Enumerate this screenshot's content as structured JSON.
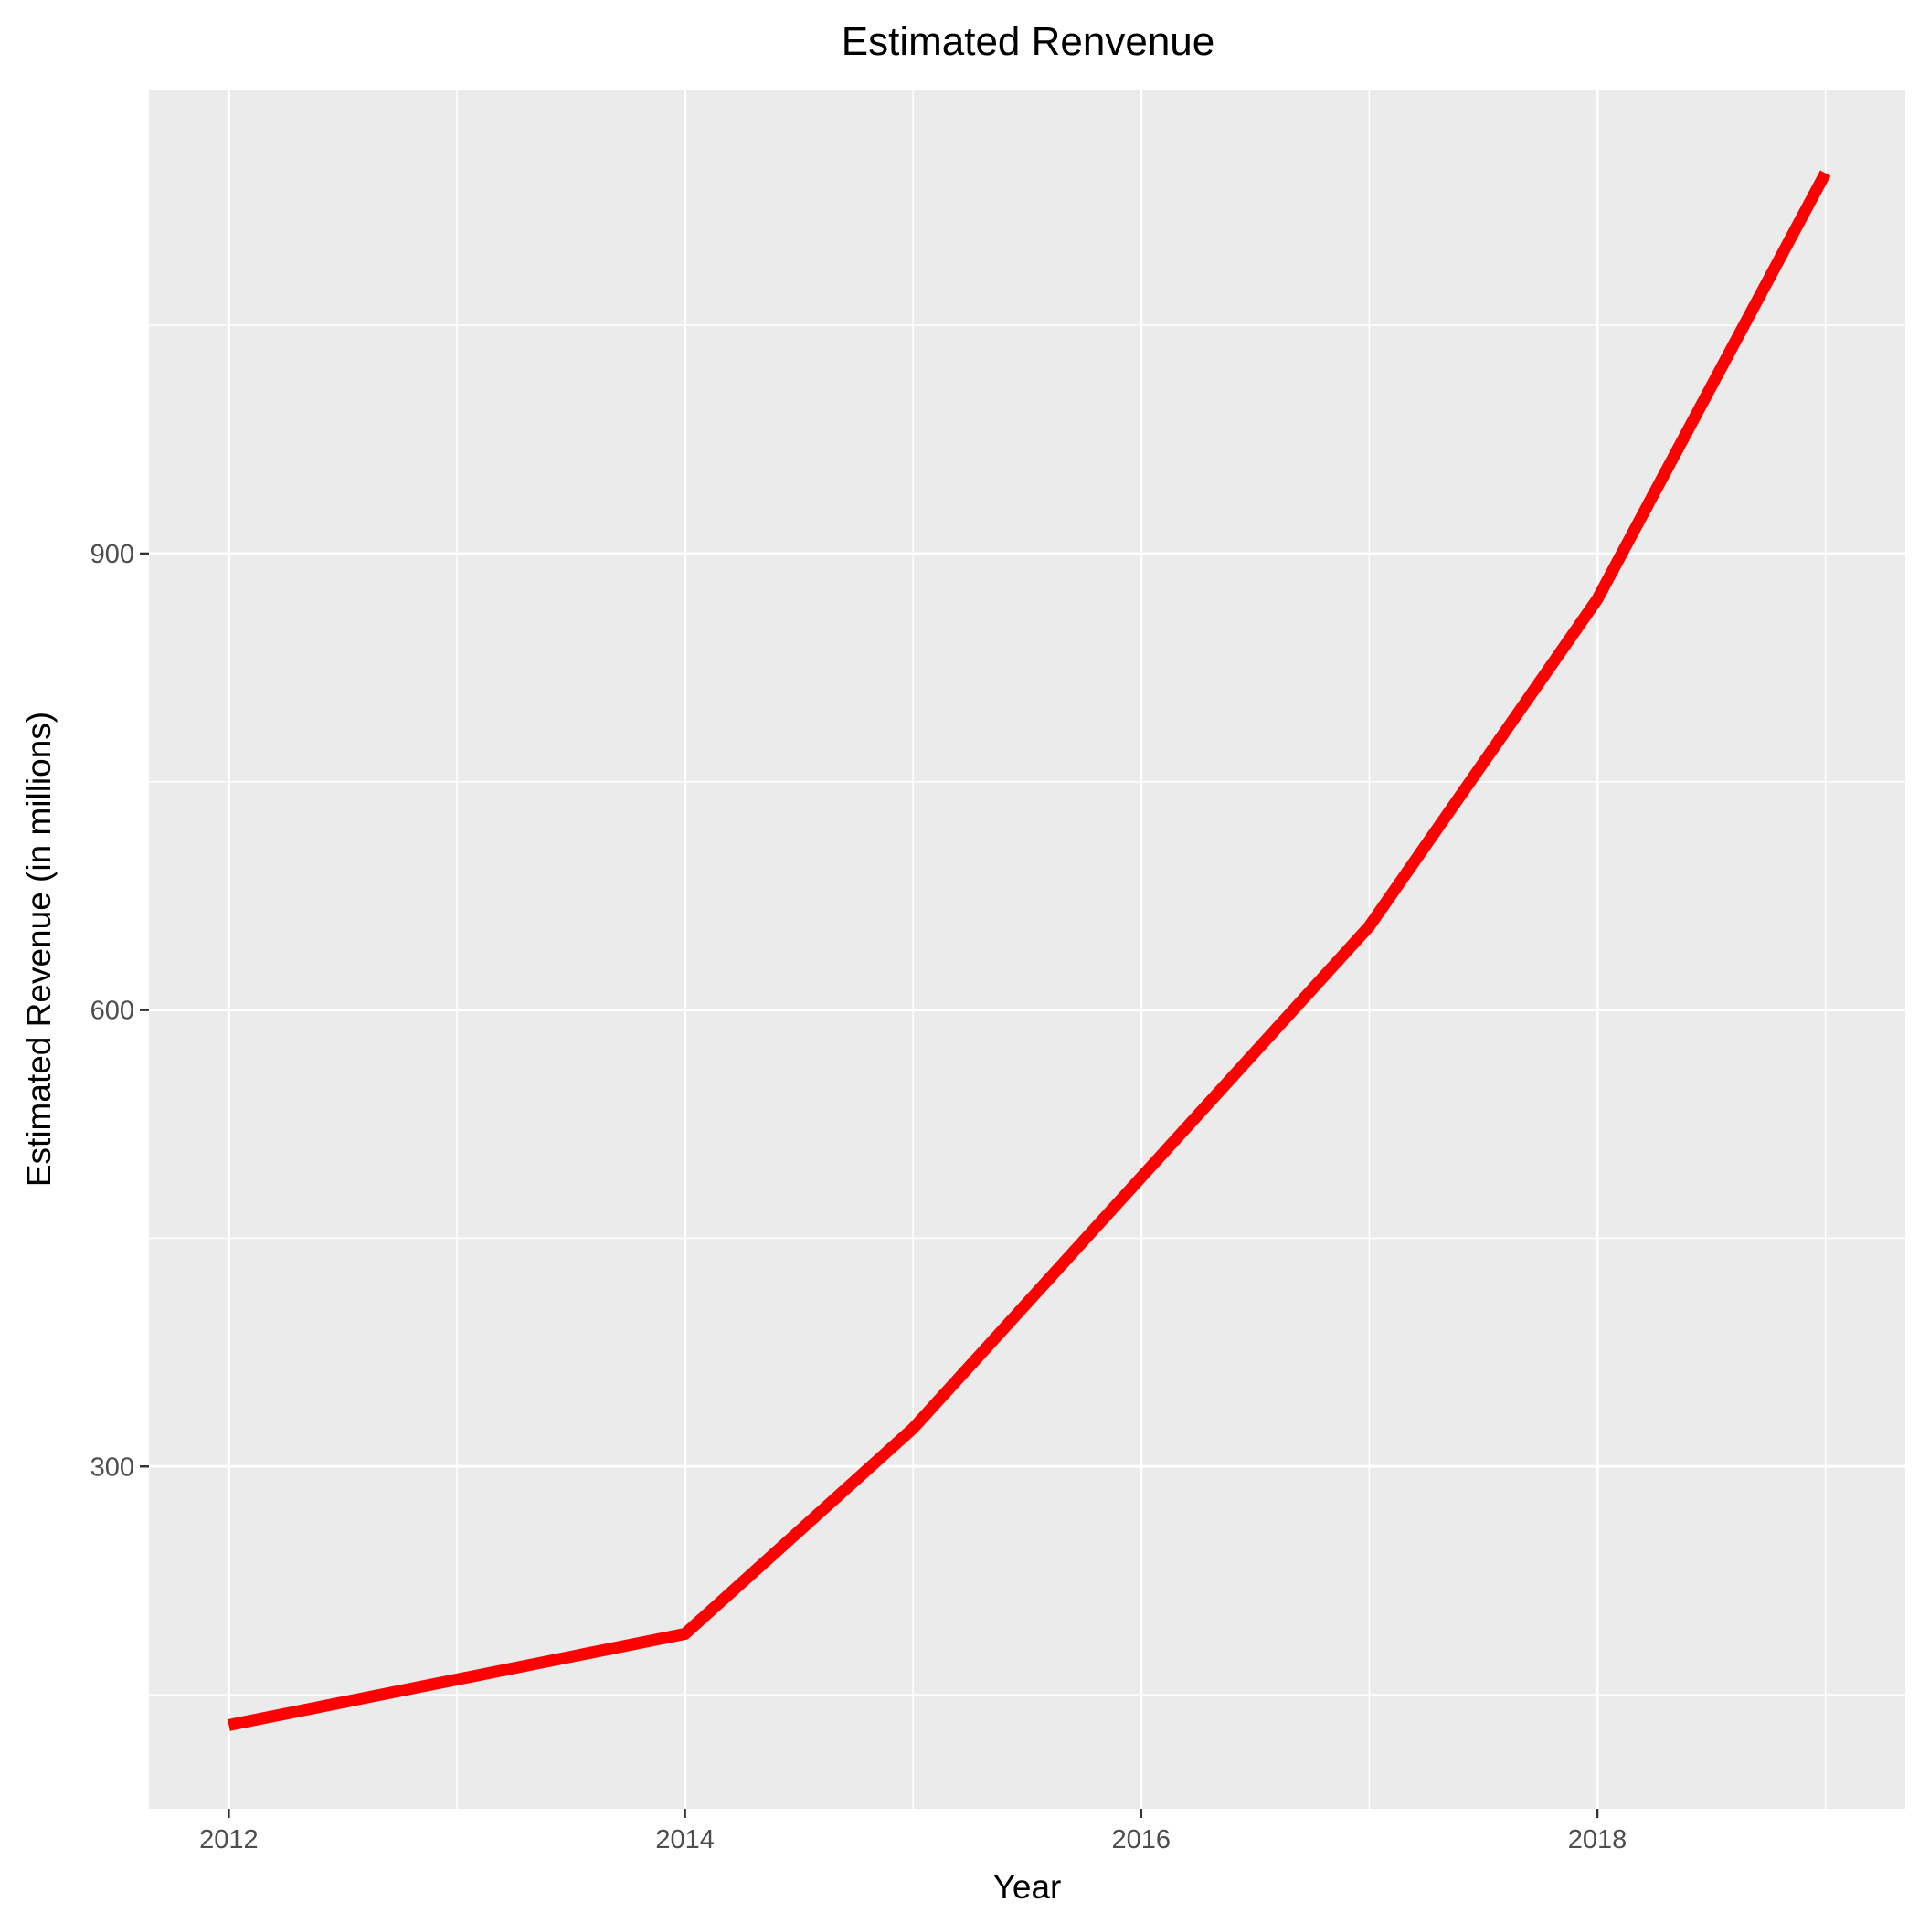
{
  "chart_data": {
    "type": "line",
    "title": "Estimated Renvenue",
    "xlabel": "Year",
    "ylabel": "Estimated Revenue (in millions)",
    "x": [
      2012,
      2014,
      2015,
      2016,
      2017,
      2018,
      2019
    ],
    "series": [
      {
        "values": [
          130,
          190,
          325,
          490,
          655,
          870,
          1150
        ],
        "color": "#ff0000"
      }
    ],
    "xlim": [
      2011.65,
      2019.35
    ],
    "ylim": [
      75,
      1205
    ],
    "x_ticks": [
      2012,
      2014,
      2016,
      2018
    ],
    "x_tick_labels": [
      "2012",
      "2014",
      "2016",
      "2018"
    ],
    "x_minor_ticks": [
      2013,
      2015,
      2017,
      2019
    ],
    "y_ticks": [
      300,
      600,
      900
    ],
    "y_tick_labels": [
      "300",
      "600",
      "900"
    ],
    "y_minor_ticks": [
      150,
      450,
      750,
      1050
    ],
    "grid": true,
    "legend": "none",
    "colors": {
      "panel_background": "#ebebeb",
      "grid": "#ffffff",
      "line": "#ff0000"
    }
  }
}
